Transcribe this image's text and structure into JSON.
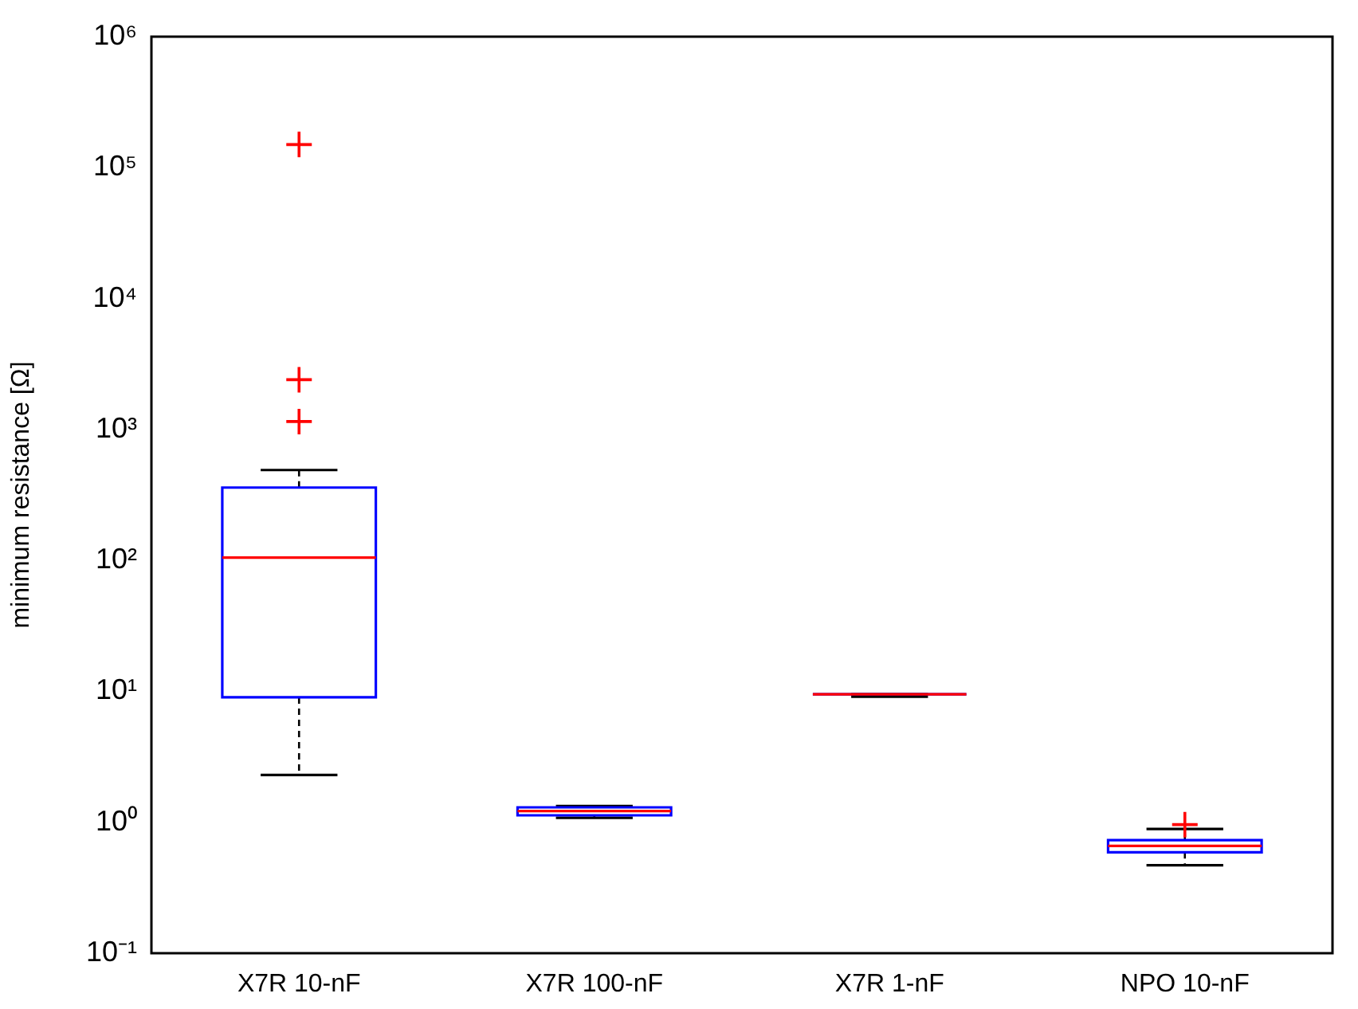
{
  "chart_data": {
    "type": "box",
    "ylabel": "minimum resistance [Ω]",
    "categories": [
      "X7R 10-nF",
      "X7R 100-nF",
      "X7R 1-nF",
      "NPO 10-nF"
    ],
    "log": "y",
    "grid": false,
    "legend": false,
    "marker": "cross",
    "color": "#0000ff",
    "ylim": [
      0.1,
      1000000
    ],
    "yticks": [
      {
        "value": 0.1,
        "label": "10⁻¹"
      },
      {
        "value": 1,
        "label": "10⁰"
      },
      {
        "value": 10,
        "label": "10¹"
      },
      {
        "value": 100,
        "label": "10²"
      },
      {
        "value": 1000,
        "label": "10³"
      },
      {
        "value": 10000,
        "label": "10⁴"
      },
      {
        "value": 100000,
        "label": "10⁵"
      },
      {
        "value": 1000000,
        "label": "10⁶"
      }
    ],
    "boxes": [
      {
        "low": 2.3,
        "q1": 9,
        "median": 105,
        "q3": 360,
        "high": 490,
        "outliers": [
          1150,
          2400,
          150000
        ]
      },
      {
        "low": 1.08,
        "q1": 1.13,
        "median": 1.22,
        "q3": 1.3,
        "high": 1.33
      },
      {
        "low": 9.1,
        "q1": 9.5,
        "median": 9.5,
        "q3": 9.5,
        "high": 9.5
      },
      {
        "low": 0.47,
        "q1": 0.59,
        "median": 0.66,
        "q3": 0.73,
        "high": 0.89,
        "outliers": [
          0.96
        ]
      }
    ]
  }
}
